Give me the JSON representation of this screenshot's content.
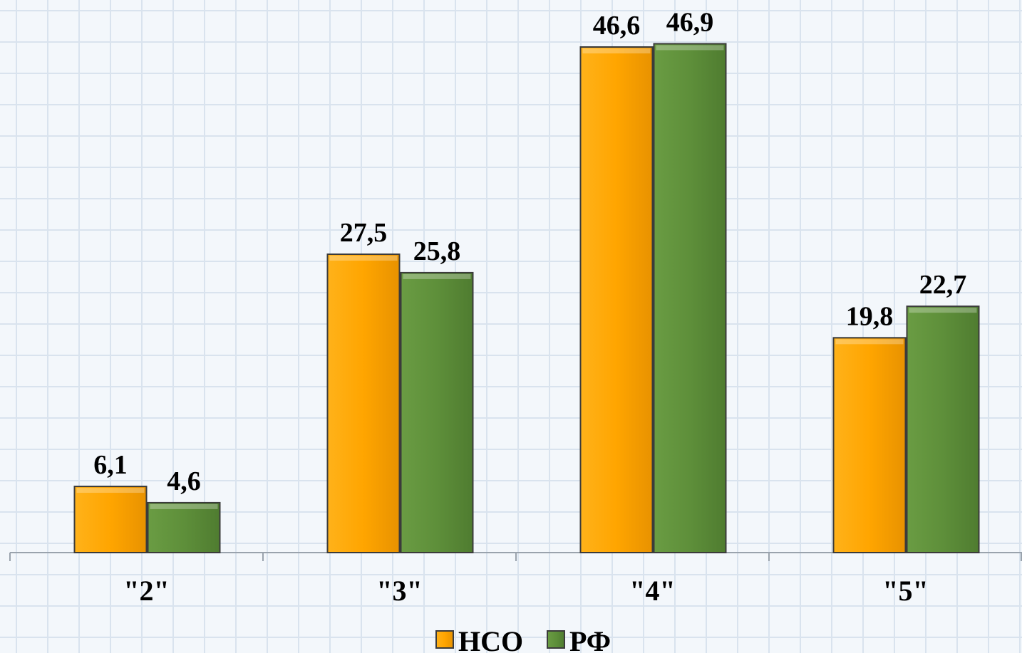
{
  "chart_data": {
    "type": "bar",
    "categories": [
      "\"2\"",
      "\"3\"",
      "\"4\"",
      "\"5\""
    ],
    "series": [
      {
        "name": "НСО",
        "values": [
          6.1,
          27.5,
          46.6,
          19.8
        ],
        "labels": [
          "6,1",
          "27,5",
          "46,6",
          "19,8"
        ],
        "color": "#ffa500"
      },
      {
        "name": "РФ",
        "values": [
          4.6,
          25.8,
          46.9,
          22.7
        ],
        "labels": [
          "4,6",
          "25,8",
          "46,9",
          "22,7"
        ],
        "color": "#5e8f3a"
      }
    ],
    "ylim": [
      0,
      50
    ],
    "grid": true,
    "legend_position": "bottom-center"
  }
}
